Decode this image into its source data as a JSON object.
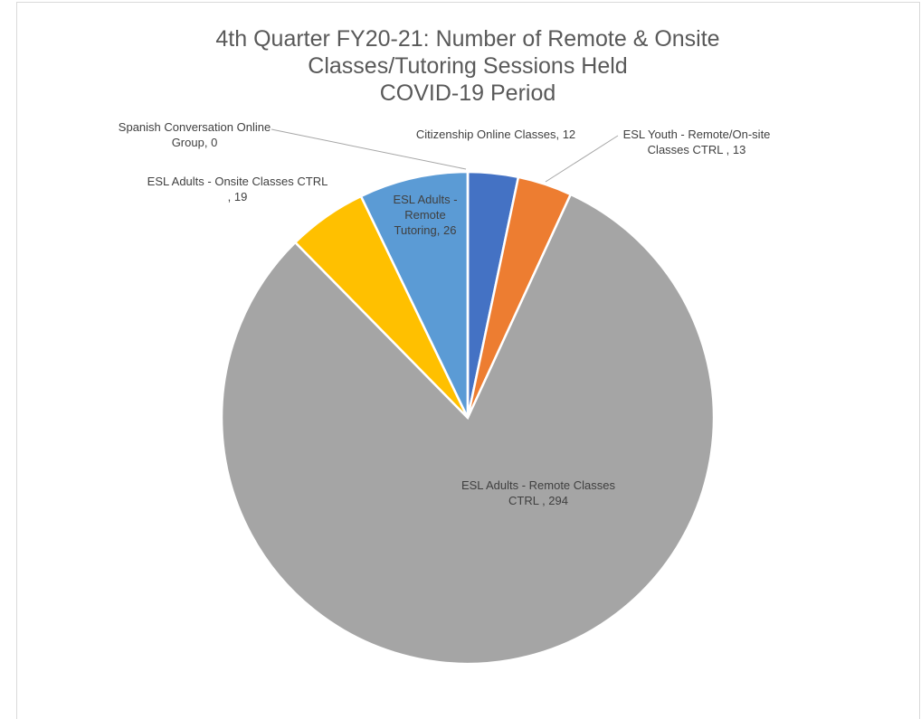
{
  "chart_data": {
    "type": "pie",
    "title": "4th Quarter FY20-21: Number of Remote & Onsite Classes/Tutoring Sessions Held",
    "subtitle": "COVID-19 Period",
    "categories": [
      "Citizenship Online Classes",
      "ESL Youth - Remote/On-site Classes CTRL ",
      "ESL Adults - Remote Classes CTRL ",
      "ESL Adults - Onsite Classes CTRL ",
      "ESL Adults - Remote Tutoring",
      "Spanish Conversation Online Group"
    ],
    "values": [
      12,
      13,
      294,
      19,
      26,
      0
    ],
    "colors": [
      "#4472c4",
      "#ed7d31",
      "#a5a5a5",
      "#ffc000",
      "#5b9bd5",
      "#264478"
    ]
  }
}
